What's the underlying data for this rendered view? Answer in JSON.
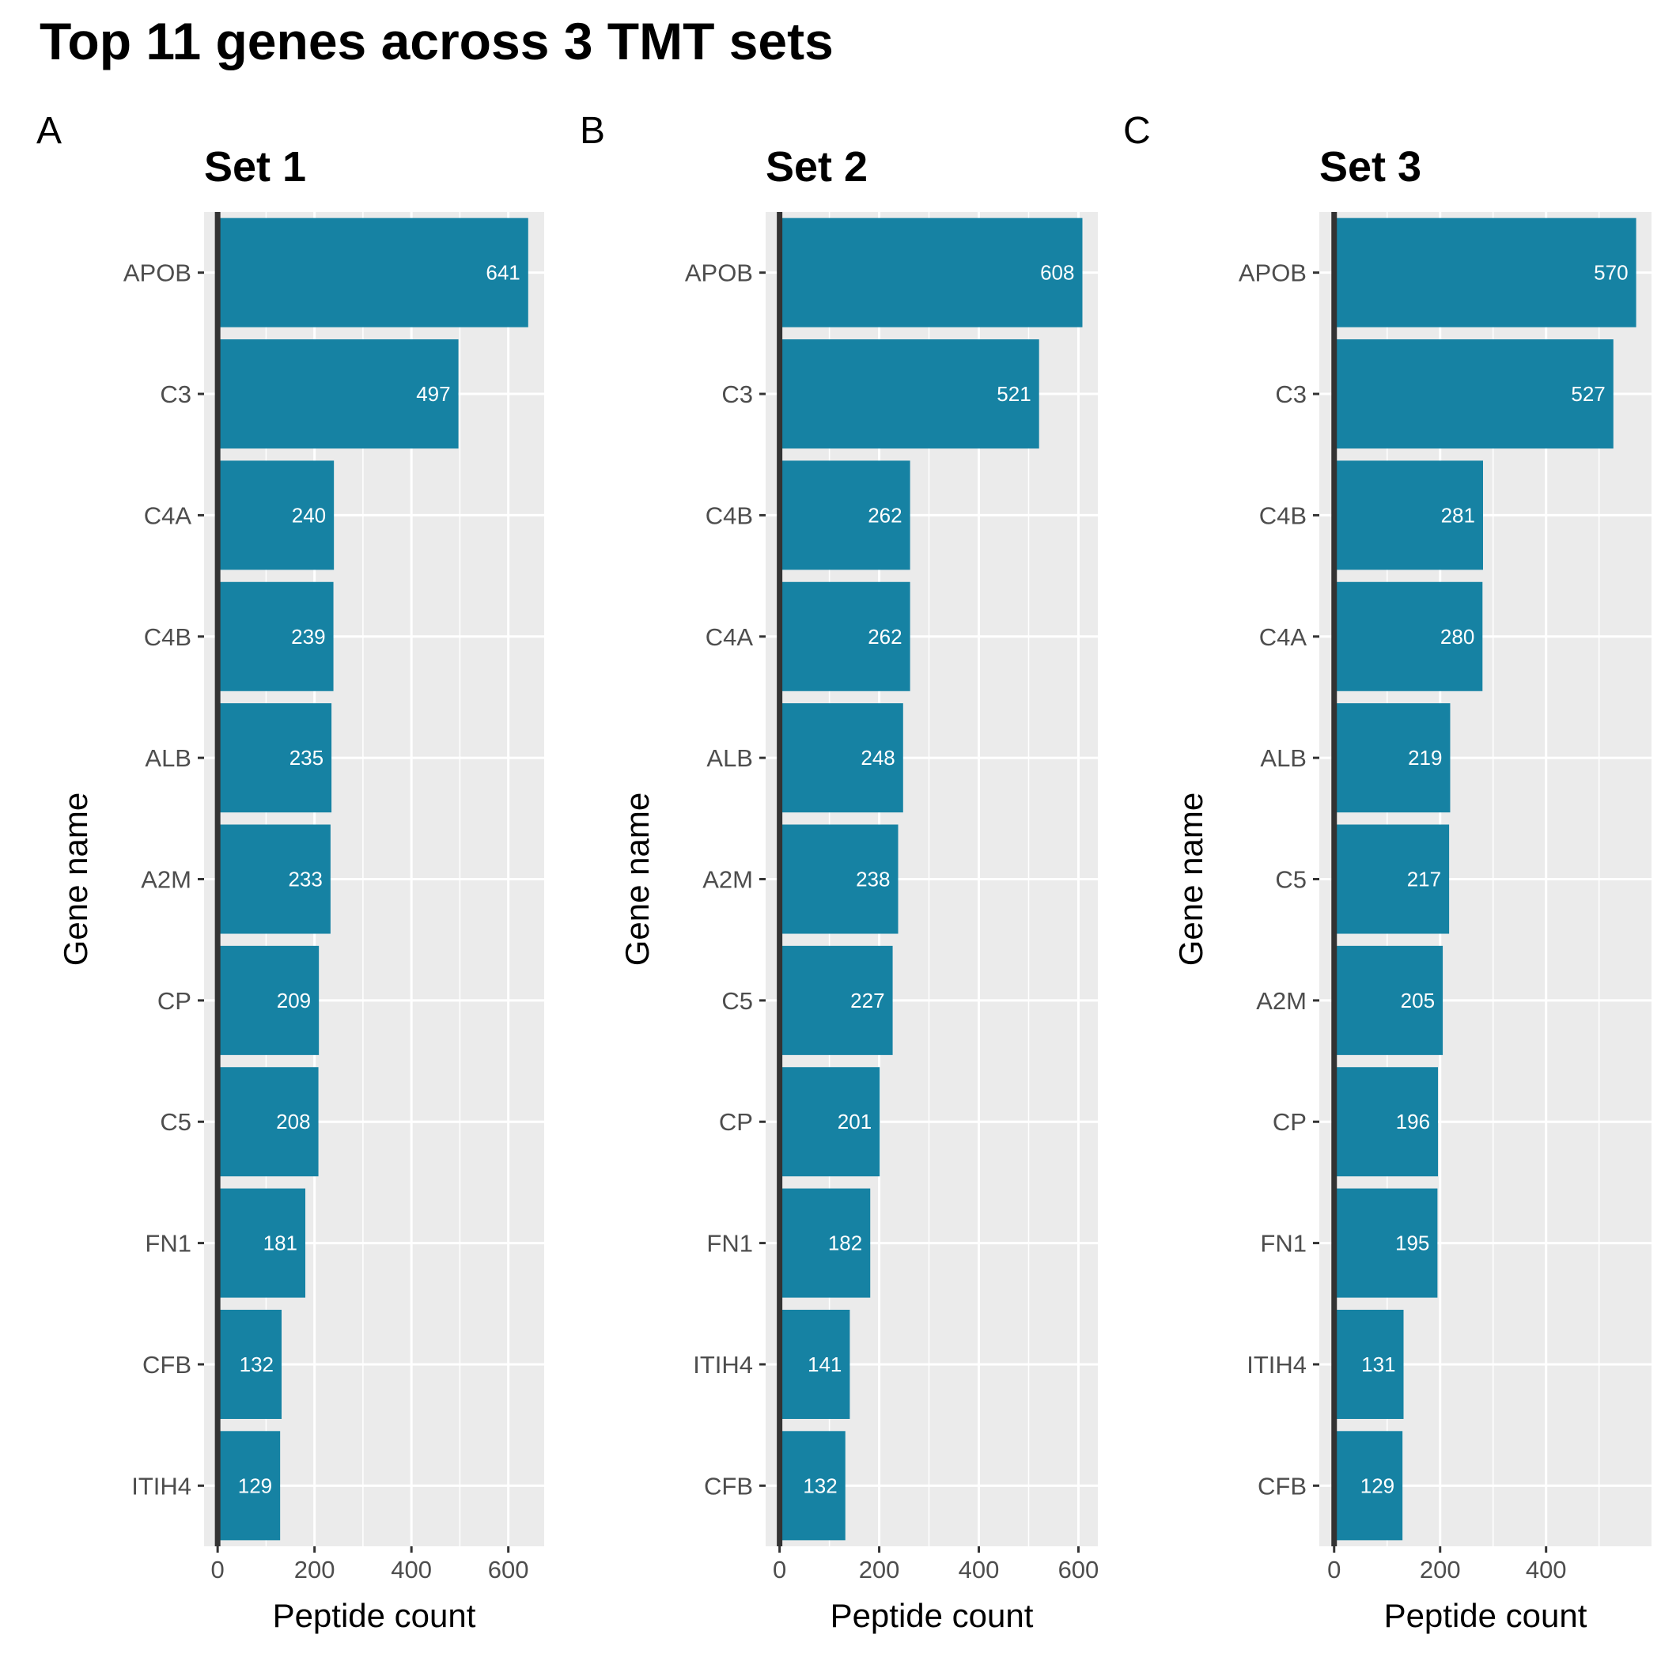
{
  "title": "Top 11 genes across 3 TMT sets",
  "colors": {
    "bar": "#1682A3",
    "panel_bg": "#EBEBEB",
    "grid": "#FFFFFF",
    "zero_line": "#333333",
    "tick_text": "#4D4D4D",
    "bar_label": "#FFFFFF"
  },
  "chart_data": [
    {
      "type": "bar",
      "orientation": "horizontal",
      "panel_label": "A",
      "title": "Set 1",
      "xlabel": "Peptide count",
      "ylabel": "Gene name",
      "xlim": [
        -28,
        674
      ],
      "xticks": [
        0,
        200,
        400,
        600
      ],
      "grid": true,
      "categories": [
        "APOB",
        "C3",
        "C4A",
        "C4B",
        "ALB",
        "A2M",
        "CP",
        "C5",
        "FN1",
        "CFB",
        "ITIH4"
      ],
      "values": [
        641,
        497,
        240,
        239,
        235,
        233,
        209,
        208,
        181,
        132,
        129
      ],
      "labels": [
        "641",
        "497",
        "240",
        "239",
        "235",
        "233",
        "209",
        "208",
        "181",
        "132",
        "129"
      ]
    },
    {
      "type": "bar",
      "orientation": "horizontal",
      "panel_label": "B",
      "title": "Set 2",
      "xlabel": "Peptide count",
      "ylabel": "Gene name",
      "xlim": [
        -28,
        639
      ],
      "xticks": [
        0,
        200,
        400,
        600
      ],
      "grid": true,
      "categories": [
        "APOB",
        "C3",
        "C4B",
        "C4A",
        "ALB",
        "A2M",
        "C5",
        "CP",
        "FN1",
        "ITIH4",
        "CFB"
      ],
      "values": [
        608,
        521,
        262,
        262,
        248,
        238,
        227,
        201,
        182,
        141,
        132
      ],
      "labels": [
        "608",
        "521",
        "262",
        "262",
        "248",
        "238",
        "227",
        "201",
        "182",
        "141",
        "132"
      ]
    },
    {
      "type": "bar",
      "orientation": "horizontal",
      "panel_label": "C",
      "title": "Set 3",
      "xlabel": "Peptide count",
      "ylabel": "Gene name",
      "xlim": [
        -28,
        599
      ],
      "xticks": [
        0,
        200,
        400
      ],
      "grid": true,
      "categories": [
        "APOB",
        "C3",
        "C4B",
        "C4A",
        "ALB",
        "C5",
        "A2M",
        "CP",
        "FN1",
        "ITIH4",
        "CFB"
      ],
      "values": [
        570,
        527,
        281,
        280,
        219,
        217,
        205,
        196,
        195,
        131,
        129
      ],
      "labels": [
        "570",
        "527",
        "281",
        "280",
        "219",
        "217",
        "205",
        "196",
        "195",
        "131",
        "129"
      ]
    }
  ]
}
